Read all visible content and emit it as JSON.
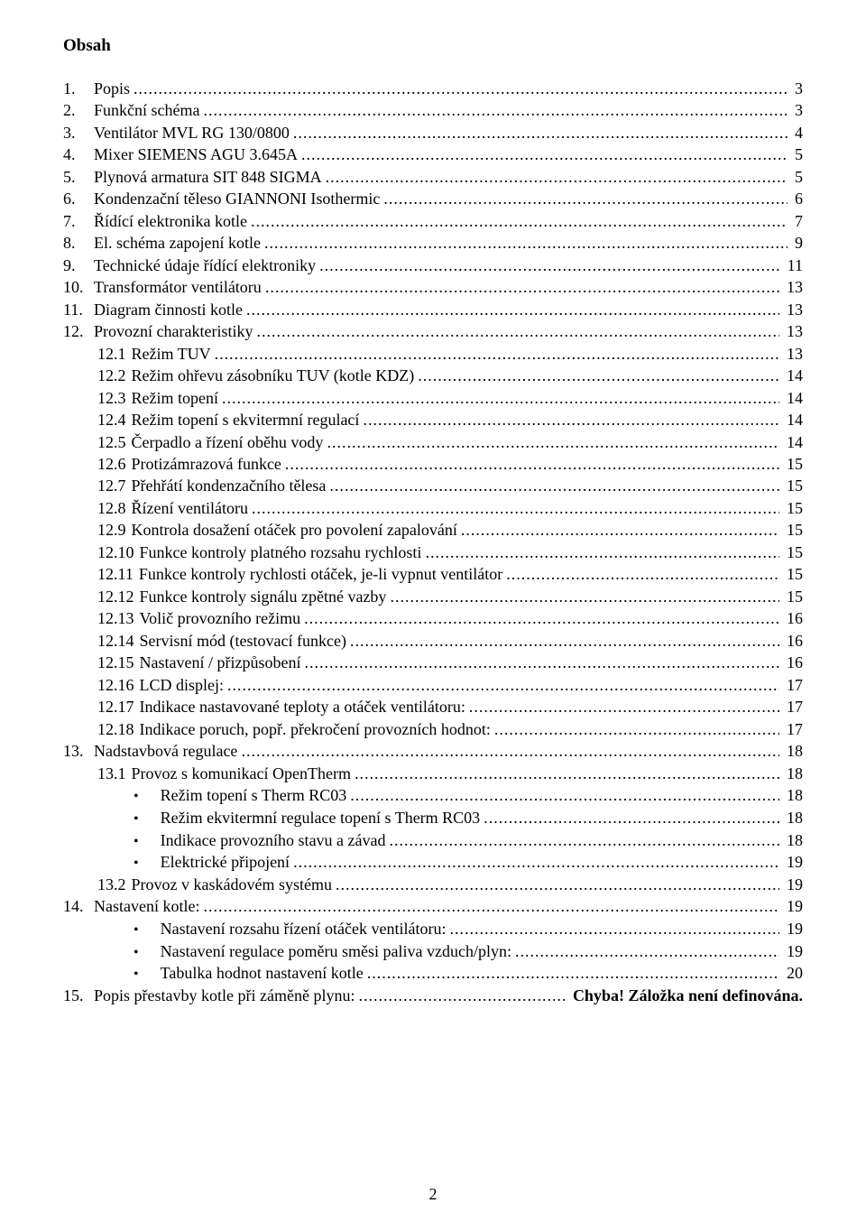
{
  "title": "Obsah",
  "page_number": "2",
  "colors": {
    "text": "#000000",
    "background": "#ffffff"
  },
  "toc": [
    {
      "indent": 0,
      "num": "1.",
      "label": "Popis",
      "page": "3"
    },
    {
      "indent": 0,
      "num": "2.",
      "label": "Funkční schéma",
      "page": "3"
    },
    {
      "indent": 0,
      "num": "3.",
      "label": "Ventilátor MVL RG 130/0800",
      "page": "4"
    },
    {
      "indent": 0,
      "num": "4.",
      "label": "Mixer SIEMENS AGU 3.645A",
      "page": "5"
    },
    {
      "indent": 0,
      "num": "5.",
      "label": "Plynová armatura SIT 848 SIGMA",
      "page": "5"
    },
    {
      "indent": 0,
      "num": "6.",
      "label": "Kondenzační těleso GIANNONI Isothermic",
      "page": "6"
    },
    {
      "indent": 0,
      "num": "7.",
      "label": "Řídící elektronika kotle",
      "page": "7"
    },
    {
      "indent": 0,
      "num": "8.",
      "label": "El. schéma zapojení kotle",
      "page": "9"
    },
    {
      "indent": 0,
      "num": "9.",
      "label": "Technické údaje řídící elektroniky",
      "page": "11"
    },
    {
      "indent": 0,
      "num": "10.",
      "label": "Transformátor ventilátoru",
      "page": "13"
    },
    {
      "indent": 0,
      "num": "11.",
      "label": "Diagram činnosti kotle",
      "page": "13"
    },
    {
      "indent": 0,
      "num": "12.",
      "label": "Provozní charakteristiky",
      "page": "13"
    },
    {
      "indent": 1,
      "num": "12.1",
      "label": "Režim TUV",
      "page": "13"
    },
    {
      "indent": 1,
      "num": "12.2",
      "label": "Režim ohřevu zásobníku TUV (kotle KDZ)",
      "page": "14"
    },
    {
      "indent": 1,
      "num": "12.3",
      "label": "Režim topení",
      "page": "14"
    },
    {
      "indent": 1,
      "num": "12.4",
      "label": "Režim topení s ekvitermní regulací",
      "page": "14"
    },
    {
      "indent": 1,
      "num": "12.5",
      "label": "Čerpadlo a řízení oběhu vody",
      "page": "14"
    },
    {
      "indent": 1,
      "num": "12.6",
      "label": "Protizámrazová funkce",
      "page": "15"
    },
    {
      "indent": 1,
      "num": "12.7",
      "label": "Přehřátí kondenzačního tělesa",
      "page": "15"
    },
    {
      "indent": 1,
      "num": "12.8",
      "label": "Řízení ventilátoru",
      "page": "15"
    },
    {
      "indent": 1,
      "num": "12.9",
      "label": "Kontrola dosažení otáček pro povolení zapalování",
      "page": "15"
    },
    {
      "indent": 2,
      "num": "12.10",
      "label": "Funkce kontroly platného rozsahu rychlosti",
      "page": "15"
    },
    {
      "indent": 2,
      "num": "12.11",
      "label": "Funkce kontroly rychlosti otáček, je-li vypnut ventilátor",
      "page": "15"
    },
    {
      "indent": 2,
      "num": "12.12",
      "label": "Funkce kontroly signálu zpětné vazby",
      "page": "15"
    },
    {
      "indent": 2,
      "num": "12.13",
      "label": "Volič provozního režimu",
      "page": "16"
    },
    {
      "indent": 2,
      "num": "12.14",
      "label": "Servisní mód (testovací funkce)",
      "page": "16"
    },
    {
      "indent": 2,
      "num": "12.15",
      "label": "Nastavení / přizpůsobení",
      "page": "16"
    },
    {
      "indent": 2,
      "num": "12.16",
      "label": "LCD displej:",
      "page": "17"
    },
    {
      "indent": 2,
      "num": "12.17",
      "label": "Indikace nastavované teploty a otáček ventilátoru:",
      "page": "17"
    },
    {
      "indent": 2,
      "num": "12.18",
      "label": "Indikace poruch, popř. překročení provozních hodnot:",
      "page": "17"
    },
    {
      "indent": 0,
      "num": "13.",
      "label": "Nadstavbová regulace",
      "page": "18"
    },
    {
      "indent": 1,
      "num": "13.1",
      "label": "Provoz s komunikací OpenTherm",
      "page": "18"
    },
    {
      "indent": "bullet",
      "label": "Režim topení s Therm RC03",
      "page": "18"
    },
    {
      "indent": "bullet",
      "label": "Režim ekvitermní regulace topení s Therm RC03",
      "page": "18"
    },
    {
      "indent": "bullet",
      "label": "Indikace provozního stavu a závad",
      "page": "18"
    },
    {
      "indent": "bullet",
      "label": "Elektrické připojení",
      "page": "19"
    },
    {
      "indent": 1,
      "num": "13.2",
      "label": "Provoz v kaskádovém systému",
      "page": "19"
    },
    {
      "indent": 0,
      "num": "14.",
      "label": "Nastavení kotle:",
      "page": "19"
    },
    {
      "indent": "bullet",
      "label": "Nastavení rozsahu řízení otáček ventilátoru:",
      "page": "19"
    },
    {
      "indent": "bullet",
      "label": "Nastavení regulace poměru směsi paliva vzduch/plyn:",
      "page": "19"
    },
    {
      "indent": "bullet",
      "label": "Tabulka hodnot nastavení kotle",
      "page": "20"
    },
    {
      "indent": 0,
      "num": "15.",
      "label": "Popis přestavby kotle při záměně plynu:",
      "page_error": "Chyba! Záložka není definována."
    }
  ]
}
